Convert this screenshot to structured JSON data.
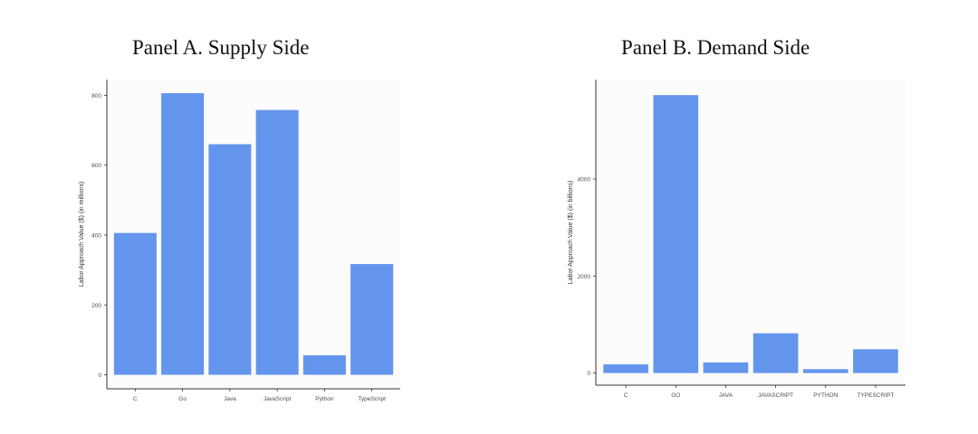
{
  "panels": {
    "a": {
      "title": "Panel A. Supply Side"
    },
    "b": {
      "title": "Panel B. Demand Side"
    }
  },
  "colors": {
    "bar": "#6495ED",
    "background": "#fcfcfc",
    "axis": "#333333",
    "tick_text": "#4d4d4d"
  },
  "chart_data": [
    {
      "type": "bar",
      "title": "Panel A. Supply Side",
      "xlabel": "",
      "ylabel": "Labor Approach Value ($) (in millions)",
      "categories": [
        "C",
        "Go",
        "Java",
        "JavaScript",
        "Python",
        "TypeScript"
      ],
      "values": [
        406,
        806,
        660,
        758,
        56,
        317
      ],
      "ylim": [
        -40,
        845
      ],
      "yticks": [
        0,
        200,
        400,
        600,
        800
      ],
      "grid": false
    },
    {
      "type": "bar",
      "title": "Panel B. Demand Side",
      "xlabel": "",
      "ylabel": "Labor Approach Value ($) (in billions)",
      "categories": [
        "C",
        "GO",
        "JAVA",
        "JAVASCRIPT",
        "PYTHON",
        "TYPESCRIPT"
      ],
      "values": [
        180,
        5730,
        220,
        820,
        80,
        490
      ],
      "ylim": [
        -250,
        6050
      ],
      "yticks": [
        0,
        2000,
        4000
      ],
      "grid": false
    }
  ]
}
